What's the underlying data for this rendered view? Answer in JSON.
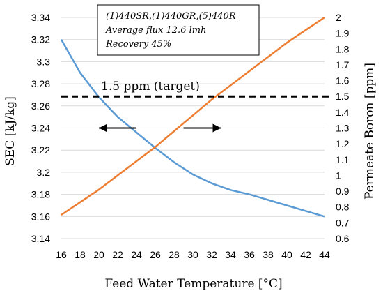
{
  "chart_data": {
    "type": "line",
    "xlabel": "Feed Water Temperature [°C]",
    "ylabel_left": "SEC [kJ/kg]",
    "ylabel_right": "Permeate Boron [ppm]",
    "x_ticks": [
      "16",
      "18",
      "20",
      "22",
      "24",
      "26",
      "28",
      "30",
      "32",
      "34",
      "36",
      "38",
      "40",
      "42",
      "44"
    ],
    "y_left_ticks": [
      "3.14",
      "3.16",
      "3.18",
      "3.2",
      "3.22",
      "3.24",
      "3.26",
      "3.28",
      "3.3",
      "3.32",
      "3.34"
    ],
    "y_right_ticks": [
      "0.6",
      "0.7",
      "0.8",
      "0.9",
      "1",
      "1.1",
      "1.2",
      "1.3",
      "1.4",
      "1.5",
      "1.6",
      "1.7",
      "1.8",
      "1.9",
      "2"
    ],
    "xlim": [
      16,
      44
    ],
    "ylim_left": [
      3.14,
      3.34
    ],
    "ylim_right": [
      0.6,
      2.0
    ],
    "grid": "horizontal",
    "colors": {
      "sec": "#5b9bd5",
      "boron": "#ed7d31",
      "target": "#000000",
      "grid": "#d9d9d9"
    },
    "series": [
      {
        "name": "SEC",
        "axis": "left",
        "x": [
          16,
          18,
          20,
          22,
          24,
          26,
          28,
          30,
          32,
          34,
          36,
          38,
          40,
          42,
          44
        ],
        "y": [
          3.32,
          3.29,
          3.268,
          3.25,
          3.236,
          3.222,
          3.209,
          3.198,
          3.19,
          3.184,
          3.18,
          3.175,
          3.17,
          3.165,
          3.16
        ]
      },
      {
        "name": "Permeate Boron",
        "axis": "right",
        "x": [
          16,
          18,
          20,
          22,
          24,
          26,
          28,
          30,
          32,
          34,
          36,
          38,
          40,
          42,
          44
        ],
        "y": [
          0.75,
          0.83,
          0.91,
          1.0,
          1.09,
          1.18,
          1.28,
          1.38,
          1.48,
          1.57,
          1.66,
          1.75,
          1.84,
          1.92,
          2.0
        ]
      }
    ],
    "target_line": {
      "value": 1.5,
      "axis": "right",
      "label": "1.5 ppm (target)"
    },
    "arrows": [
      {
        "from": 24,
        "to": 20,
        "y": 1.3,
        "axis": "right"
      },
      {
        "from": 29,
        "to": 33,
        "y": 1.3,
        "axis": "right"
      }
    ],
    "annotation_box": {
      "lines": [
        "(1)440SR,(1)440GR,(5)440R",
        "Average flux 12.6 lmh",
        "Recovery 45%"
      ]
    }
  }
}
